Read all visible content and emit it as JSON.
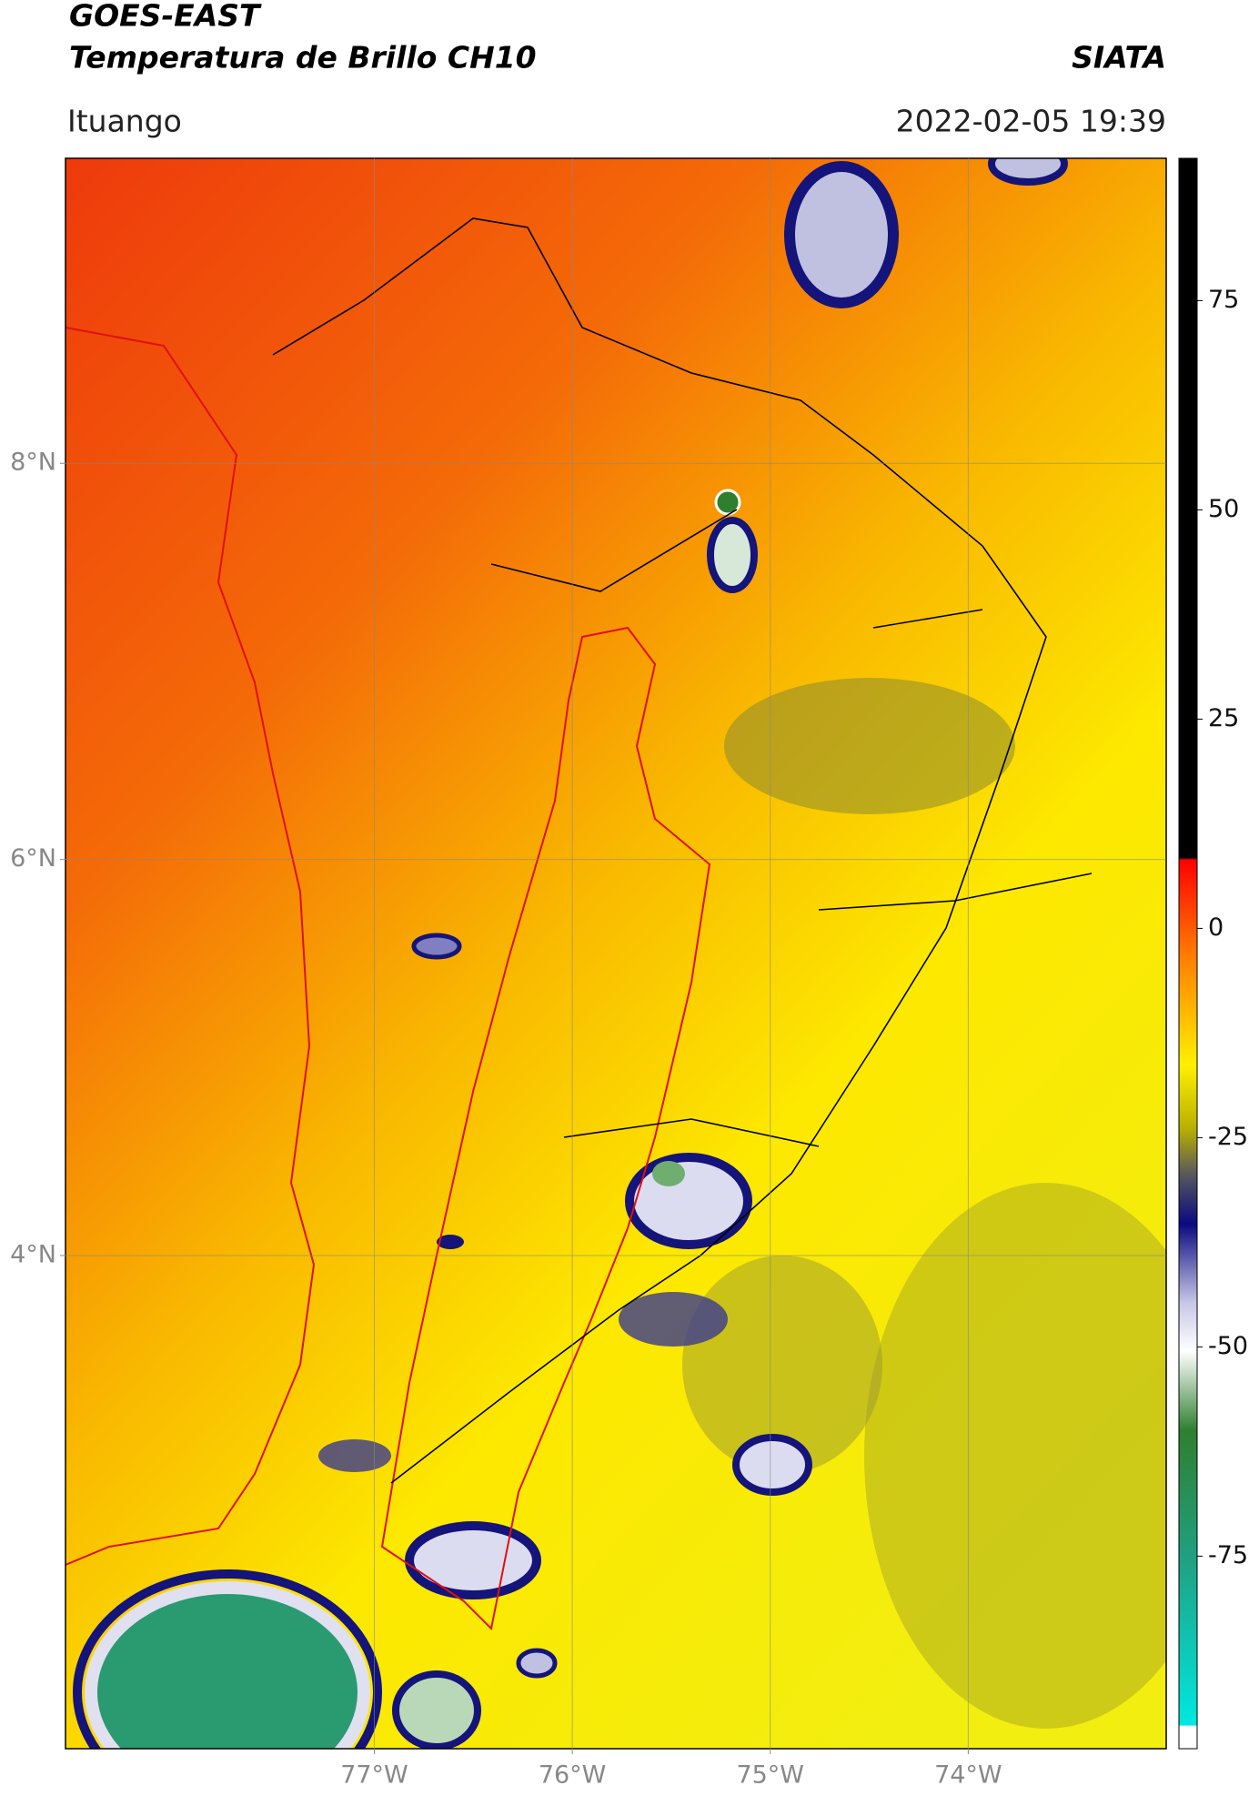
{
  "header": {
    "title": "GOES-EAST",
    "subtitle": "Temperatura de Brillo CH10",
    "source": "SIATA",
    "location": "Ituango",
    "datetime": "2022-02-05 19:39"
  },
  "map": {
    "xlim": [
      -78.56,
      -73.0
    ],
    "ylim": [
      1.51,
      9.54
    ],
    "xticks": [
      {
        "value": -77,
        "label": "77°W"
      },
      {
        "value": -76,
        "label": "76°W"
      },
      {
        "value": -75,
        "label": "75°W"
      },
      {
        "value": -74,
        "label": "74°W"
      }
    ],
    "yticks": [
      {
        "value": 8,
        "label": "8°N"
      },
      {
        "value": 6,
        "label": "6°N"
      },
      {
        "value": 4,
        "label": "4°N"
      }
    ],
    "grid": true
  },
  "colorbar": {
    "lim": [
      -98,
      92
    ],
    "ticks": [
      75,
      50,
      25,
      0,
      -25,
      -50,
      -75
    ]
  }
}
